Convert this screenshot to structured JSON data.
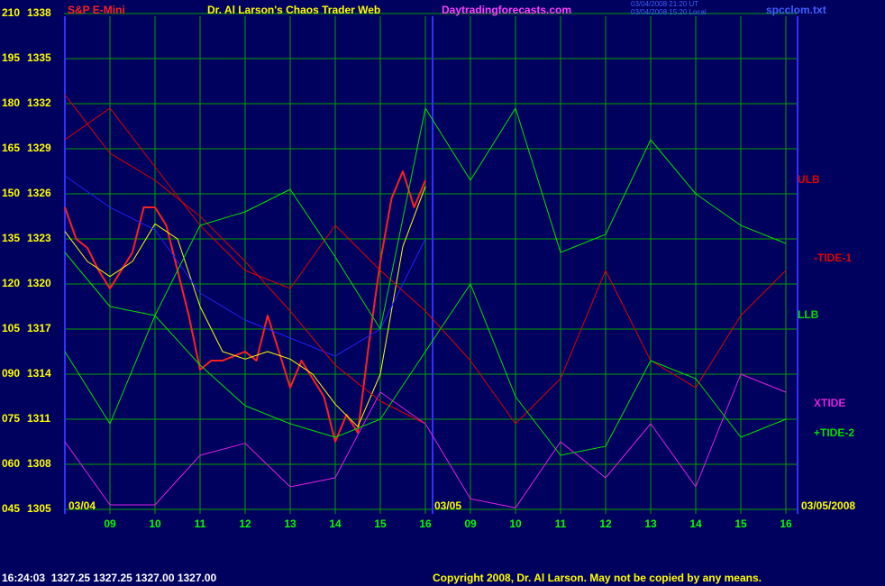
{
  "chart_data": {
    "type": "line",
    "title": "Dr. Al Larson's Chaos Trader Web",
    "instrument": "S&P E-Mini",
    "website": "Daytradingforecasts.com",
    "timestamp_ut": "03/04/2008 21:20 UT",
    "timestamp_local": "03/04/2008 15:20 Local",
    "file": "spcclom.txt",
    "date_labels": [
      "03/04",
      "03/05",
      "03/05/2008"
    ],
    "status": "16:24:03  1327.25 1327.25 1327.00 1327.00",
    "copyright": "Copyright 2008, Dr. Al Larson. May not be copied by any means.",
    "background": "#00005e",
    "grid": true,
    "grid_color": "#00a000",
    "xlim": [
      0,
      16.3
    ],
    "xticks": [
      {
        "value": 1,
        "label": "09"
      },
      {
        "value": 2,
        "label": "10"
      },
      {
        "value": 3,
        "label": "11"
      },
      {
        "value": 4,
        "label": "12"
      },
      {
        "value": 5,
        "label": "13"
      },
      {
        "value": 6,
        "label": "14"
      },
      {
        "value": 7,
        "label": "15"
      },
      {
        "value": 8,
        "label": "16"
      },
      {
        "value": 9,
        "label": "09"
      },
      {
        "value": 10,
        "label": "10"
      },
      {
        "value": 11,
        "label": "11"
      },
      {
        "value": 12,
        "label": "12"
      },
      {
        "value": 13,
        "label": "13"
      },
      {
        "value": 14,
        "label": "14"
      },
      {
        "value": 15,
        "label": "15"
      },
      {
        "value": 16,
        "label": "16"
      }
    ],
    "ylim": [
      1305,
      1338
    ],
    "yticks": [
      1305,
      1308,
      1311,
      1314,
      1317,
      1320,
      1323,
      1326,
      1329,
      1332,
      1335,
      1338
    ],
    "y2lim": [
      45,
      210
    ],
    "y2ticks": [
      {
        "value": 45,
        "label": "045"
      },
      {
        "value": 60,
        "label": "060"
      },
      {
        "value": 75,
        "label": "075"
      },
      {
        "value": 90,
        "label": "090"
      },
      105,
      120,
      135,
      150,
      165,
      180,
      195,
      210
    ],
    "series": [
      {
        "color": "#ff2020",
        "width": 2,
        "x": [
          0,
          0.25,
          0.5,
          0.75,
          1,
          1.25,
          1.5,
          1.75,
          2,
          2.25,
          2.5,
          2.75,
          3,
          3.25,
          3.5,
          3.75,
          4,
          4.25,
          4.5,
          4.75,
          5,
          5.25,
          5.5,
          5.75,
          6,
          6.25,
          6.5,
          6.75,
          7,
          7.25,
          7.5,
          7.75,
          8
        ],
        "values": [
          1325.1,
          1323.0,
          1322.4,
          1320.9,
          1319.7,
          1320.9,
          1322.1,
          1325.1,
          1325.1,
          1323.9,
          1320.9,
          1317.9,
          1314.3,
          1314.9,
          1314.9,
          1315.2,
          1315.5,
          1314.9,
          1317.9,
          1315.5,
          1313.1,
          1314.9,
          1313.7,
          1312.5,
          1309.5,
          1311.3,
          1310.1,
          1316.1,
          1321.5,
          1325.7,
          1327.5,
          1325.1,
          1326.9
        ]
      },
      {
        "color": "#ffff00",
        "width": 1,
        "x": [
          0,
          0.5,
          1,
          1.5,
          2,
          2.5,
          3,
          3.5,
          4,
          4.5,
          5,
          5.5,
          6,
          6.5,
          7,
          7.5,
          8
        ],
        "values": [
          1323.5,
          1321.5,
          1320.5,
          1321.5,
          1324,
          1323,
          1318.5,
          1315.5,
          1315,
          1315.5,
          1315,
          1314,
          1312,
          1310.5,
          1314,
          1322.5,
          1326.5
        ]
      },
      {
        "color": "#2020ff",
        "width": 1,
        "axis": "y2",
        "x": [
          0,
          1,
          2,
          3,
          4,
          5,
          6,
          7,
          8
        ],
        "values": [
          156,
          145.5,
          138,
          117,
          108,
          102,
          96,
          105,
          135
        ]
      },
      {
        "name": "ULB",
        "color": "#e00000",
        "width": 1,
        "axis": "y2",
        "x": [
          0,
          1,
          2,
          3,
          4,
          5,
          6,
          7,
          8
        ],
        "values": [
          183,
          163.5,
          154.5,
          142.5,
          127.5,
          111,
          93,
          81,
          73.5
        ]
      },
      {
        "name": "-TIDE-1",
        "color": "#e00000",
        "width": 1,
        "axis": "y2",
        "x": [
          0,
          1,
          2,
          3,
          4,
          5,
          6,
          7,
          8,
          9,
          10,
          11,
          12,
          13,
          14,
          15,
          16
        ],
        "values": [
          168,
          178.5,
          159,
          139.5,
          124.5,
          118.5,
          139.5,
          124.5,
          111,
          94.5,
          73.5,
          88.5,
          124.5,
          94.5,
          85.5,
          109.5,
          124.5
        ]
      },
      {
        "name": "LLB",
        "color": "#00e000",
        "width": 1,
        "axis": "y2",
        "x": [
          0,
          1,
          2,
          3,
          4,
          5,
          6,
          7,
          8,
          9,
          10,
          11,
          12,
          13,
          14,
          15,
          16
        ],
        "values": [
          130.5,
          112.5,
          109.5,
          139.5,
          144,
          151.5,
          129,
          105,
          178.5,
          154.5,
          178.5,
          130.5,
          136.5,
          168,
          150,
          139.5,
          133.5
        ]
      },
      {
        "name": "XTIDE",
        "color": "#e020e0",
        "width": 1,
        "axis": "y2",
        "x": [
          0,
          1,
          2,
          3,
          4,
          5,
          6,
          7,
          8,
          9,
          10,
          11,
          12,
          13,
          14,
          15,
          16
        ],
        "values": [
          67.5,
          46.5,
          46.5,
          63,
          67,
          52.5,
          55.5,
          84,
          73.5,
          48.5,
          45.5,
          67.5,
          55.5,
          73.5,
          52.5,
          90,
          84
        ]
      },
      {
        "name": "+TIDE-2",
        "color": "#00e000",
        "width": 1,
        "axis": "y2",
        "x": [
          0,
          1,
          2,
          3,
          4,
          5,
          6,
          7,
          8,
          9,
          10,
          11,
          12,
          13,
          14,
          15,
          16
        ],
        "values": [
          97.5,
          73.5,
          109.5,
          93,
          79.5,
          73.5,
          69,
          75,
          97.5,
          120,
          82.5,
          63,
          66,
          94.5,
          88.5,
          69,
          75
        ]
      }
    ]
  }
}
